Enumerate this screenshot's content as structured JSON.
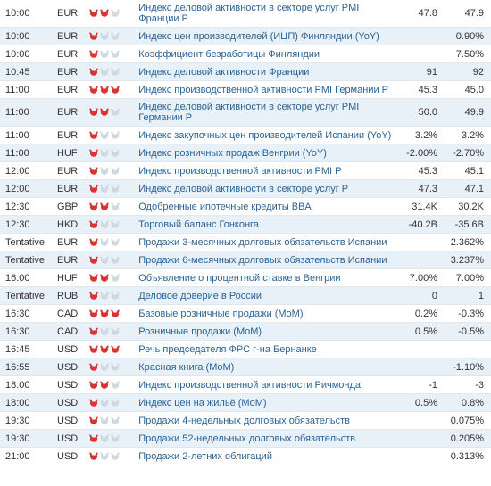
{
  "colors": {
    "link": "#2a6496",
    "row_even": "#e8f0f8",
    "row_odd": "#ffffff",
    "bull_active": "#d93434",
    "bull_inactive": "#d0d8e0",
    "text": "#333333"
  },
  "rows": [
    {
      "time": "10:00",
      "currency": "EUR",
      "impact": 2,
      "event": "Индекс деловой активности в секторе услуг PMI Франции P",
      "v1": "47.8",
      "v2": "47.9"
    },
    {
      "time": "10:00",
      "currency": "EUR",
      "impact": 1,
      "event": "Индекс цен производителей (ИЦП) Финляндии (YoY)",
      "v1": "",
      "v2": "0.90%"
    },
    {
      "time": "10:00",
      "currency": "EUR",
      "impact": 1,
      "event": "Коэффициент безработицы Финляндии",
      "v1": "",
      "v2": "7.50%"
    },
    {
      "time": "10:45",
      "currency": "EUR",
      "impact": 1,
      "event": "Индекс деловой активности Франции",
      "v1": "91",
      "v2": "92"
    },
    {
      "time": "11:00",
      "currency": "EUR",
      "impact": 3,
      "event": "Индекс производственной активности PMI Германии P",
      "v1": "45.3",
      "v2": "45.0"
    },
    {
      "time": "11:00",
      "currency": "EUR",
      "impact": 2,
      "event": "Индекс деловой активности в секторе услуг PMI Германии P",
      "v1": "50.0",
      "v2": "49.9"
    },
    {
      "time": "11:00",
      "currency": "EUR",
      "impact": 1,
      "event": "Индекс закупочных цен производителей Испании (YoY)",
      "v1": "3.2%",
      "v2": "3.2%"
    },
    {
      "time": "11:00",
      "currency": "HUF",
      "impact": 1,
      "event": "Индекс розничных продаж Венгрии (YoY)",
      "v1": "-2.00%",
      "v2": "-2.70%"
    },
    {
      "time": "12:00",
      "currency": "EUR",
      "impact": 1,
      "event": "Индекс производственной активности PMI P",
      "v1": "45.3",
      "v2": "45.1"
    },
    {
      "time": "12:00",
      "currency": "EUR",
      "impact": 1,
      "event": "Индекс деловой активности в секторе услуг P",
      "v1": "47.3",
      "v2": "47.1"
    },
    {
      "time": "12:30",
      "currency": "GBP",
      "impact": 2,
      "event": "Одобренные ипотечные кредиты BBA",
      "v1": "31.4K",
      "v2": "30.2K"
    },
    {
      "time": "12:30",
      "currency": "HKD",
      "impact": 1,
      "event": "Торговый баланс Гонконга",
      "v1": "-40.2B",
      "v2": "-35.6B"
    },
    {
      "time": "Tentative",
      "currency": "EUR",
      "impact": 1,
      "event": "Продажи 3-месячных долговых обязательств Испании",
      "v1": "",
      "v2": "2.362%"
    },
    {
      "time": "Tentative",
      "currency": "EUR",
      "impact": 1,
      "event": "Продажи 6-месячных долговых обязательств Испании",
      "v1": "",
      "v2": "3.237%"
    },
    {
      "time": "16:00",
      "currency": "HUF",
      "impact": 2,
      "event": "Объявление о процентной ставке в Венгрии",
      "v1": "7.00%",
      "v2": "7.00%"
    },
    {
      "time": "Tentative",
      "currency": "RUB",
      "impact": 1,
      "event": "Деловое доверие в России",
      "v1": "0",
      "v2": "1"
    },
    {
      "time": "16:30",
      "currency": "CAD",
      "impact": 3,
      "event": "Базовые розничные продажи (MoM)",
      "v1": "0.2%",
      "v2": "-0.3%"
    },
    {
      "time": "16:30",
      "currency": "CAD",
      "impact": 1,
      "event": "Розничные продажи (MoM)",
      "v1": "0.5%",
      "v2": "-0.5%"
    },
    {
      "time": "16:45",
      "currency": "USD",
      "impact": 3,
      "event": "Речь председателя ФРС г-на Бернанке",
      "v1": "",
      "v2": ""
    },
    {
      "time": "16:55",
      "currency": "USD",
      "impact": 1,
      "event": "Красная книга (MoM)",
      "v1": "",
      "v2": "-1.10%"
    },
    {
      "time": "18:00",
      "currency": "USD",
      "impact": 2,
      "event": "Индекс производственной активности Ричмонда",
      "v1": "-1",
      "v2": "-3"
    },
    {
      "time": "18:00",
      "currency": "USD",
      "impact": 1,
      "event": "Индекс цен на жильё (MoM)",
      "v1": "0.5%",
      "v2": "0.8%"
    },
    {
      "time": "19:30",
      "currency": "USD",
      "impact": 1,
      "event": "Продажи 4-недельных долговых обязательств",
      "v1": "",
      "v2": "0.075%"
    },
    {
      "time": "19:30",
      "currency": "USD",
      "impact": 1,
      "event": "Продажи 52-недельных долговых обязательств",
      "v1": "",
      "v2": "0.205%"
    },
    {
      "time": "21:00",
      "currency": "USD",
      "impact": 1,
      "event": "Продажи 2-летних облигаций",
      "v1": "",
      "v2": "0.313%"
    }
  ]
}
